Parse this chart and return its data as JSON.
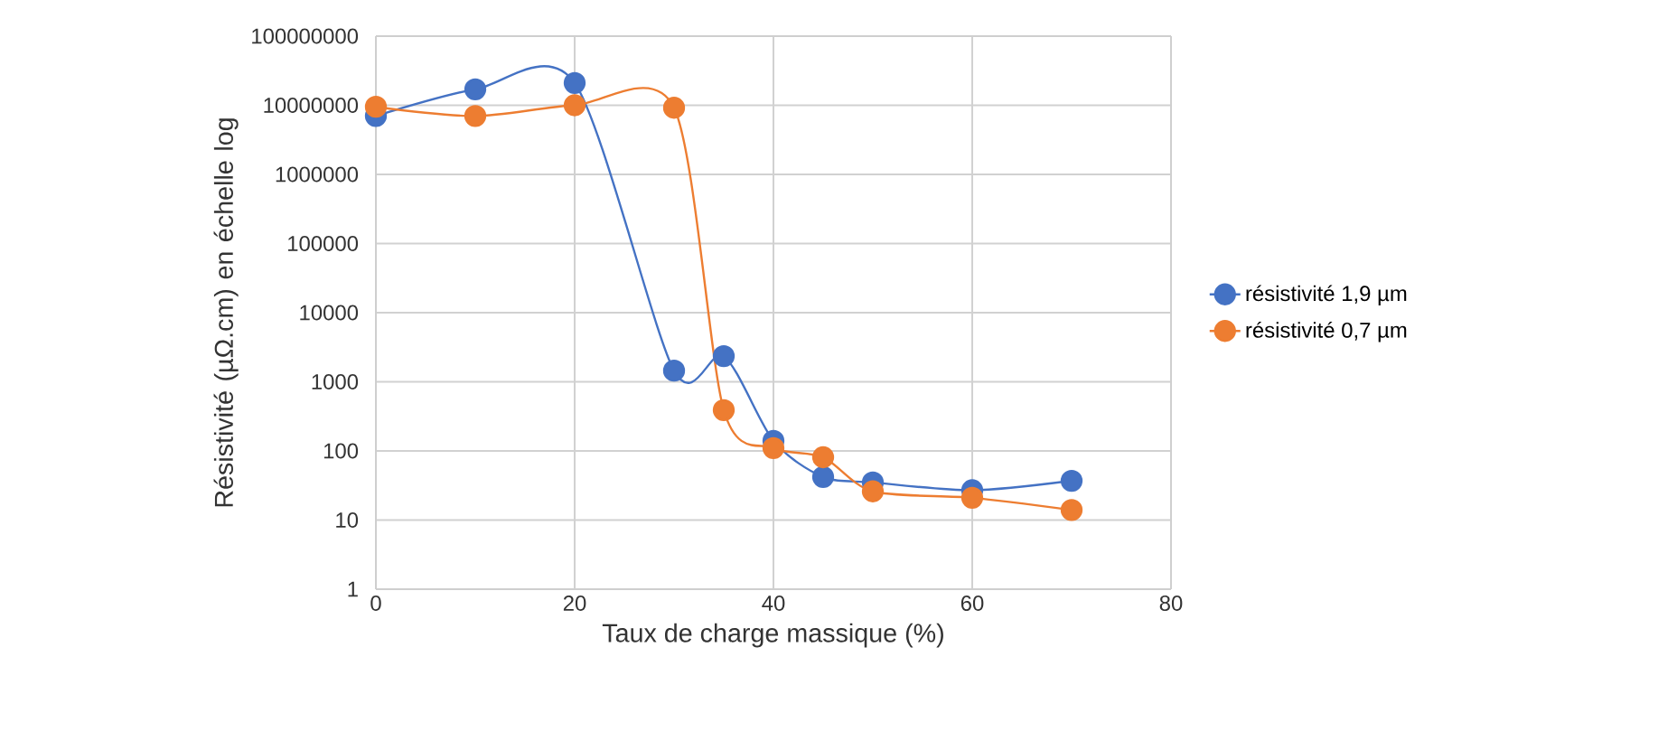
{
  "chart_data": {
    "type": "line",
    "xlabel": "Taux de charge massique (%)",
    "ylabel": "Résistivité (µΩ.cm) en échelle log",
    "x": [
      0,
      10,
      20,
      30,
      35,
      40,
      45,
      50,
      60,
      70
    ],
    "series": [
      {
        "name": "résistivité 1,9 µm",
        "color": "#4472c4",
        "values": [
          7000000,
          17000000,
          21000000,
          1450,
          2350,
          140,
          42,
          35,
          27,
          37
        ]
      },
      {
        "name": "résistivité 0,7 µm",
        "color": "#ed7d31",
        "values": [
          9500000,
          7000000,
          10000000,
          9200000,
          390,
          110,
          81,
          26,
          21,
          14
        ]
      }
    ],
    "log": "y",
    "xlim": [
      0,
      80
    ],
    "ylim": [
      1,
      100000000
    ],
    "xticks": [
      0,
      20,
      40,
      60,
      80
    ],
    "yticks": [
      1,
      10,
      100,
      1000,
      10000,
      100000,
      1000000,
      10000000,
      100000000
    ],
    "grid": true,
    "legend": "right",
    "marker": "circle",
    "line_style": "solid"
  }
}
